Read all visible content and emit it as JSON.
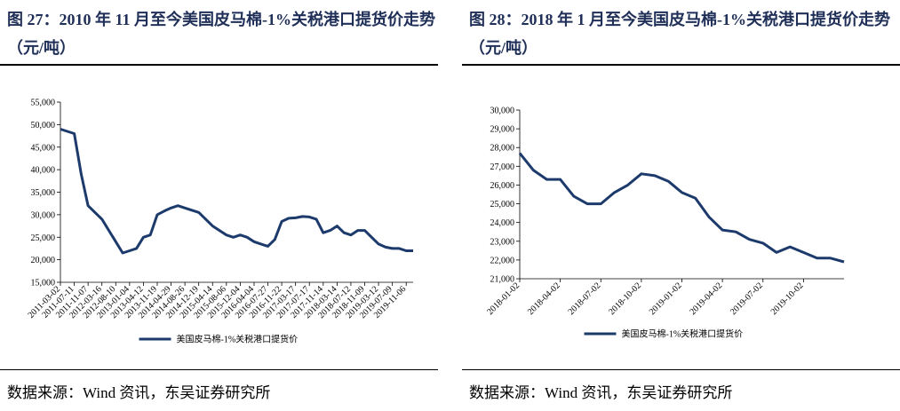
{
  "chart_data": [
    {
      "type": "line",
      "title": "图 27：2010 年 11 月至今美国皮马棉-1%关税港口提货价走势（元/吨）",
      "categories": [
        "2011-03-02",
        null,
        "2011-07-11",
        null,
        "2011-11-07",
        null,
        "2012-03-16",
        null,
        "2012-08-10",
        null,
        "2013-01-04",
        null,
        "2013-04-12",
        null,
        "2013-11-19",
        null,
        "2014-04-29",
        null,
        "2014-08-26",
        null,
        "2014-12-19",
        null,
        "2015-04-14",
        null,
        "2015-08-06",
        null,
        "2015-12-04",
        null,
        "2016-04-04",
        null,
        "2016-07-27",
        null,
        "2016-11-22",
        null,
        "2017-03-17",
        null,
        "2017-07-17",
        null,
        "2017-11-14",
        null,
        "2018-03-14",
        null,
        "2018-07-12",
        null,
        "2018-11-09",
        null,
        "2019-03-12",
        null,
        "2019-07-09",
        null,
        "2019-11-06",
        null
      ],
      "series": [
        {
          "name": "美国皮马棉-1%关税港口提货价",
          "color": "#1c3a6b",
          "values": [
            49000,
            48500,
            48000,
            39000,
            32000,
            30500,
            29000,
            26500,
            24000,
            21500,
            22000,
            22500,
            25000,
            25500,
            30000,
            30800,
            31500,
            32000,
            31500,
            31000,
            30500,
            29000,
            27500,
            26500,
            25500,
            25000,
            25500,
            25000,
            24000,
            23500,
            23000,
            24500,
            28500,
            29200,
            29300,
            29600,
            29500,
            29000,
            26000,
            26500,
            27500,
            26000,
            25500,
            26500,
            26500,
            25000,
            23500,
            22800,
            22500,
            22500,
            22000,
            22000
          ]
        }
      ],
      "ylim": [
        15000,
        55000
      ],
      "yticks": [
        {
          "value": 15000,
          "label": "15,000"
        },
        {
          "value": 20000,
          "label": "20,000"
        },
        {
          "value": 25000,
          "label": "25,000"
        },
        {
          "value": 30000,
          "label": "30,000"
        },
        {
          "value": 35000,
          "label": "35,000"
        },
        {
          "value": 40000,
          "label": "40,000"
        },
        {
          "value": 45000,
          "label": "45,000"
        },
        {
          "value": 50000,
          "label": "50,000"
        },
        {
          "value": 55000,
          "label": "55,000"
        }
      ],
      "legend": "bottom",
      "source": "数据来源：Wind 资讯，东吴证券研究所"
    },
    {
      "type": "line",
      "title": "图 28：2018 年 1 月至今美国皮马棉-1%关税港口提货价走势（元/吨）",
      "categories": [
        "2018-01-02",
        null,
        null,
        "2018-04-02",
        null,
        null,
        "2018-07-02",
        null,
        null,
        "2018-10-02",
        null,
        null,
        "2019-01-02",
        null,
        null,
        "2019-04-02",
        null,
        null,
        "2019-07-02",
        null,
        null,
        "2019-10-02",
        null,
        null,
        null
      ],
      "series": [
        {
          "name": "美国皮马棉-1%关税港口提货价",
          "color": "#1c3a6b",
          "values": [
            27700,
            26800,
            26300,
            26300,
            25400,
            25000,
            25000,
            25600,
            26000,
            26600,
            26500,
            26200,
            25600,
            25300,
            24300,
            23600,
            23500,
            23100,
            22900,
            22400,
            22700,
            22400,
            22100,
            22100,
            21900
          ]
        }
      ],
      "ylim": [
        21000,
        30000
      ],
      "yticks": [
        {
          "value": 21000,
          "label": "21,000"
        },
        {
          "value": 22000,
          "label": "22,000"
        },
        {
          "value": 23000,
          "label": "23,000"
        },
        {
          "value": 24000,
          "label": "24,000"
        },
        {
          "value": 25000,
          "label": "25,000"
        },
        {
          "value": 26000,
          "label": "26,000"
        },
        {
          "value": 27000,
          "label": "27,000"
        },
        {
          "value": 28000,
          "label": "28,000"
        },
        {
          "value": 29000,
          "label": "29,000"
        },
        {
          "value": 30000,
          "label": "30,000"
        }
      ],
      "legend": "bottom",
      "source": "数据来源：Wind 资讯，东吴证券研究所"
    }
  ]
}
